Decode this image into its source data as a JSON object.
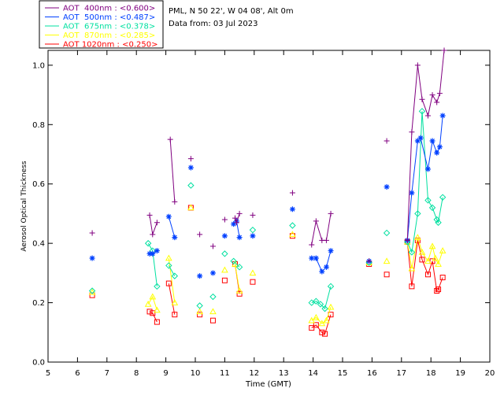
{
  "header": {
    "site": "PML, N 50 22', W 04 08', Alt 0m",
    "date": "Data from: 03 Jul 2023"
  },
  "legend": [
    {
      "label": "AOT  400nm : <0.600>",
      "color": "#800080",
      "marker": "plus"
    },
    {
      "label": "AOT  500nm : <0.487>",
      "color": "#0040ff",
      "marker": "asterisk"
    },
    {
      "label": "AOT  675nm : <0.378>",
      "color": "#00e0a0",
      "marker": "diamond"
    },
    {
      "label": "AOT  870nm : <0.285>",
      "color": "#ffff00",
      "marker": "triangle"
    },
    {
      "label": "AOT 1020nm : <0.250>",
      "color": "#ff0000",
      "marker": "square"
    }
  ],
  "chart_data": {
    "type": "line",
    "title": "",
    "xlabel": "Time (GMT)",
    "ylabel": "Aerosol Optical Thickness",
    "xlim": [
      5,
      20
    ],
    "ylim": [
      0.0,
      1.05
    ],
    "xticks": [
      "5",
      "6",
      "7",
      "8",
      "9",
      "10",
      "11",
      "12",
      "13",
      "14",
      "15",
      "16",
      "17",
      "18",
      "19",
      "20"
    ],
    "yticks": [
      "0.0",
      "0.2",
      "0.4",
      "0.6",
      "0.8",
      "1.0"
    ],
    "series": [
      {
        "name": "AOT 400nm",
        "color": "#800080",
        "marker": "plus",
        "segments": [
          [
            [
              6.5,
              0.435
            ]
          ],
          [
            [
              8.45,
              0.495
            ],
            [
              8.55,
              0.43
            ],
            [
              8.7,
              0.47
            ]
          ],
          [
            [
              9.15,
              0.75
            ],
            [
              9.3,
              0.54
            ]
          ],
          [
            [
              9.85,
              0.685
            ]
          ],
          [
            [
              10.15,
              0.43
            ]
          ],
          [
            [
              10.6,
              0.39
            ]
          ],
          [
            [
              11.0,
              0.48
            ]
          ],
          [
            [
              11.35,
              0.485
            ],
            [
              11.4,
              0.47
            ],
            [
              11.5,
              0.5
            ]
          ],
          [
            [
              11.95,
              0.495
            ]
          ],
          [
            [
              13.3,
              0.57
            ]
          ],
          [
            [
              13.95,
              0.395
            ],
            [
              14.1,
              0.475
            ],
            [
              14.3,
              0.41
            ],
            [
              14.45,
              0.41
            ],
            [
              14.6,
              0.5
            ]
          ],
          [
            [
              15.9,
              0.34
            ]
          ],
          [
            [
              16.5,
              0.745
            ]
          ],
          [
            [
              17.2,
              0.41
            ],
            [
              17.35,
              0.775
            ],
            [
              17.55,
              1.0
            ],
            [
              17.7,
              0.885
            ],
            [
              17.9,
              0.83
            ],
            [
              18.05,
              0.9
            ],
            [
              18.2,
              0.875
            ],
            [
              18.3,
              0.905
            ],
            [
              18.45,
              1.05
            ]
          ]
        ]
      },
      {
        "name": "AOT 500nm",
        "color": "#0040ff",
        "marker": "asterisk",
        "segments": [
          [
            [
              6.5,
              0.35
            ]
          ],
          [
            [
              8.45,
              0.365
            ],
            [
              8.55,
              0.365
            ],
            [
              8.7,
              0.375
            ]
          ],
          [
            [
              9.1,
              0.49
            ],
            [
              9.3,
              0.42
            ]
          ],
          [
            [
              9.85,
              0.655
            ]
          ],
          [
            [
              10.15,
              0.29
            ]
          ],
          [
            [
              10.6,
              0.3
            ]
          ],
          [
            [
              11.0,
              0.425
            ]
          ],
          [
            [
              11.3,
              0.465
            ],
            [
              11.4,
              0.475
            ],
            [
              11.5,
              0.42
            ]
          ],
          [
            [
              11.95,
              0.425
            ]
          ],
          [
            [
              13.3,
              0.515
            ]
          ],
          [
            [
              13.95,
              0.35
            ],
            [
              14.1,
              0.35
            ],
            [
              14.3,
              0.305
            ],
            [
              14.45,
              0.32
            ],
            [
              14.6,
              0.375
            ]
          ],
          [
            [
              15.9,
              0.34
            ]
          ],
          [
            [
              16.5,
              0.59
            ]
          ],
          [
            [
              17.2,
              0.41
            ],
            [
              17.35,
              0.57
            ],
            [
              17.55,
              0.745
            ],
            [
              17.65,
              0.755
            ],
            [
              17.9,
              0.65
            ],
            [
              18.05,
              0.745
            ],
            [
              18.2,
              0.705
            ],
            [
              18.3,
              0.725
            ],
            [
              18.4,
              0.83
            ]
          ]
        ]
      },
      {
        "name": "AOT 675nm",
        "color": "#00e0a0",
        "marker": "diamond",
        "segments": [
          [
            [
              6.5,
              0.24
            ]
          ],
          [
            [
              8.4,
              0.4
            ],
            [
              8.55,
              0.375
            ],
            [
              8.7,
              0.255
            ]
          ],
          [
            [
              9.1,
              0.325
            ],
            [
              9.3,
              0.29
            ]
          ],
          [
            [
              9.85,
              0.595
            ]
          ],
          [
            [
              10.15,
              0.19
            ]
          ],
          [
            [
              10.6,
              0.22
            ]
          ],
          [
            [
              11.0,
              0.365
            ]
          ],
          [
            [
              11.3,
              0.34
            ],
            [
              11.5,
              0.32
            ]
          ],
          [
            [
              11.95,
              0.445
            ]
          ],
          [
            [
              13.3,
              0.46
            ]
          ],
          [
            [
              13.95,
              0.2
            ],
            [
              14.1,
              0.205
            ],
            [
              14.25,
              0.195
            ],
            [
              14.4,
              0.18
            ],
            [
              14.6,
              0.255
            ]
          ],
          [
            [
              15.9,
              0.335
            ]
          ],
          [
            [
              16.5,
              0.435
            ]
          ],
          [
            [
              17.2,
              0.405
            ],
            [
              17.35,
              0.37
            ],
            [
              17.55,
              0.5
            ],
            [
              17.7,
              0.845
            ],
            [
              17.9,
              0.545
            ],
            [
              18.05,
              0.52
            ],
            [
              18.2,
              0.48
            ],
            [
              18.25,
              0.47
            ],
            [
              18.4,
              0.555
            ]
          ]
        ]
      },
      {
        "name": "AOT 870nm",
        "color": "#ffff00",
        "marker": "triangle",
        "segments": [
          [
            [
              6.5,
              0.235
            ]
          ],
          [
            [
              8.4,
              0.195
            ],
            [
              8.55,
              0.22
            ],
            [
              8.7,
              0.175
            ]
          ],
          [
            [
              9.1,
              0.35
            ],
            [
              9.3,
              0.2
            ]
          ],
          [
            [
              9.85,
              0.52
            ]
          ],
          [
            [
              10.15,
              0.17
            ]
          ],
          [
            [
              10.6,
              0.17
            ]
          ],
          [
            [
              11.0,
              0.31
            ]
          ],
          [
            [
              11.35,
              0.33
            ],
            [
              11.5,
              0.24
            ]
          ],
          [
            [
              11.95,
              0.3
            ]
          ],
          [
            [
              13.3,
              0.43
            ]
          ],
          [
            [
              13.95,
              0.14
            ],
            [
              14.1,
              0.15
            ],
            [
              14.3,
              0.13
            ],
            [
              14.45,
              0.14
            ],
            [
              14.6,
              0.185
            ]
          ],
          [
            [
              15.9,
              0.335
            ]
          ],
          [
            [
              16.5,
              0.34
            ]
          ],
          [
            [
              17.2,
              0.405
            ],
            [
              17.35,
              0.315
            ],
            [
              17.55,
              0.42
            ],
            [
              17.7,
              0.37
            ],
            [
              17.9,
              0.34
            ],
            [
              18.05,
              0.39
            ],
            [
              18.15,
              0.35
            ],
            [
              18.25,
              0.33
            ],
            [
              18.4,
              0.375
            ]
          ]
        ]
      },
      {
        "name": "AOT 1020nm",
        "color": "#ff0000",
        "marker": "square",
        "segments": [
          [
            [
              6.5,
              0.225
            ]
          ],
          [
            [
              8.45,
              0.17
            ],
            [
              8.55,
              0.165
            ],
            [
              8.7,
              0.135
            ]
          ],
          [
            [
              9.1,
              0.265
            ],
            [
              9.3,
              0.16
            ]
          ],
          [
            [
              9.85,
              0.52
            ]
          ],
          [
            [
              10.15,
              0.16
            ]
          ],
          [
            [
              10.6,
              0.14
            ]
          ],
          [
            [
              11.0,
              0.275
            ]
          ],
          [
            [
              11.35,
              0.33
            ],
            [
              11.5,
              0.23
            ]
          ],
          [
            [
              11.95,
              0.27
            ]
          ],
          [
            [
              13.3,
              0.425
            ]
          ],
          [
            [
              13.95,
              0.115
            ],
            [
              14.1,
              0.125
            ],
            [
              14.3,
              0.1
            ],
            [
              14.4,
              0.095
            ],
            [
              14.6,
              0.16
            ]
          ],
          [
            [
              15.9,
              0.33
            ]
          ],
          [
            [
              16.5,
              0.295
            ]
          ],
          [
            [
              17.2,
              0.405
            ],
            [
              17.35,
              0.255
            ],
            [
              17.55,
              0.41
            ],
            [
              17.7,
              0.345
            ],
            [
              17.9,
              0.295
            ],
            [
              18.05,
              0.34
            ],
            [
              18.2,
              0.24
            ],
            [
              18.25,
              0.245
            ],
            [
              18.4,
              0.285
            ]
          ]
        ]
      }
    ]
  }
}
